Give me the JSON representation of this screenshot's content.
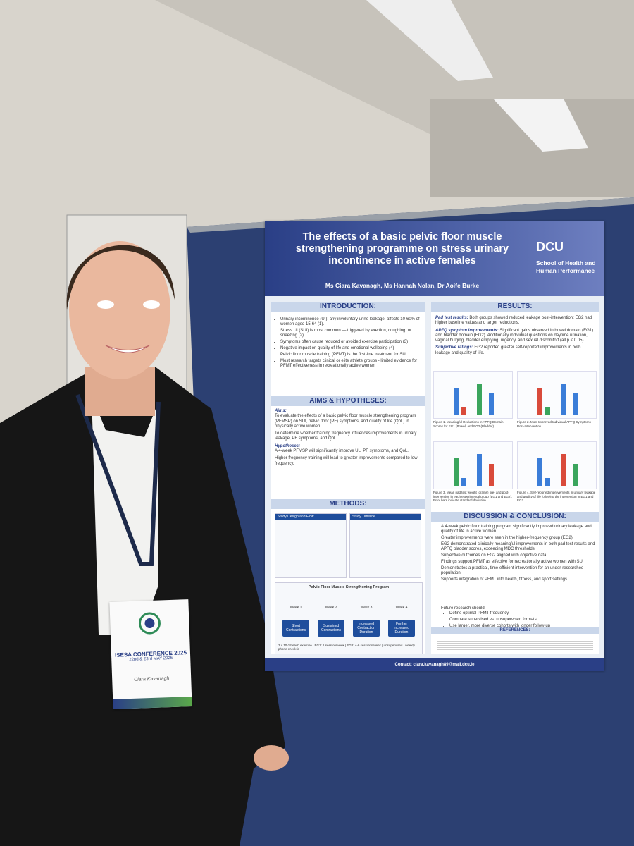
{
  "poster": {
    "title": "The effects of a basic pelvic floor muscle strengthening programme on stress urinary incontinence in active females",
    "authors": "Ms Ciara Kavanagh, Ms Hannah Nolan, Dr Aoife Burke",
    "logo": "DCU",
    "school": "School of Health and Human Performance",
    "introduction": {
      "heading": "INTRODUCTION:",
      "bullets": [
        "Urinary incontinence (UI): any involuntary urine leakage, affects 10-60% of women aged 15-64 (1).",
        "Stress UI (SUI) is most common — triggered by exertion, coughing, or sneezing (2).",
        "Symptoms often cause reduced or avoided exercise participation (3)",
        "Negative impact on quality of life and emotional wellbeing (4)",
        "Pelvic floor muscle training (PFMT) is the first-line treatment for SUI",
        "Most research targets clinical or elite athlete groups - limited evidence for PFMT effectiveness in recreationally active women"
      ]
    },
    "aims": {
      "heading": "AIMS & HYPOTHESES:",
      "aims_label": "Aims:",
      "aims": [
        "To evaluate the effects of a basic pelvic floor muscle strengthening program (PFMSP) on SUI, pelvic floor (PF) symptoms, and quality of life (QoL) in physically active women.",
        "To determine whether training frequency influences improvements in urinary leakage, PF symptoms, and QoL."
      ],
      "hypotheses_label": "Hypotheses:",
      "hypotheses": [
        "A 4-week PFMSP will significantly improve UL, PF symptoms, and QoL.",
        "Higher frequency training will lead to greater improvements compared to low frequency."
      ]
    },
    "methods": {
      "heading": "METHODS:",
      "design": "Study Design and Flow",
      "timeline": "Study Timeline",
      "program": "Pelvic Floor Muscle Strengthening Program",
      "weeks": [
        "Week 1",
        "Week 2",
        "Week 3",
        "Week 4"
      ],
      "steps": [
        "Short Contractions",
        "Sustained Contractions",
        "Increased Contraction Duration",
        "Further Increased Duration"
      ],
      "footer": "3 x 10-12 each exercise | EG1: 1 session/week | EG2: 4-6 sessions/week | unsupervised | weekly phone check in"
    },
    "results": {
      "heading": "RESULTS:",
      "paragraphs": [
        {
          "label": "Pad test results:",
          "text": "Both groups showed reduced leakage post-intervention; EG2 had higher baseline values and larger reductions."
        },
        {
          "label": "APFQ symptom improvements:",
          "text": "Significant gains observed in bowel domain (EG1) and bladder domain (EG2). Additionally individual questions on daytime urination, vaginal bulging, bladder emptying, urgency, and sexual discomfort (all p < 0.05)"
        },
        {
          "label": "Subjective ratings:",
          "text": "EG2 reported greater self-reported improvements in both leakage and quality of life."
        }
      ],
      "figures": [
        "Figure 1. Meaningful Reductions in APFQ Domain Scores for EG1 (Bowel) and EG2 (Bladder)",
        "Figure 2. Most Improved Individual APFQ Symptoms Post-Intervention",
        "Figure 3. Mean pad test weight (grams) pre- and post-intervention in each experimental group (EG1 and EG2). Error bars indicate standard deviation.",
        "Figure 4. Self-reported improvements in urinary leakage and quality of life following the intervention in EG1 and EG2."
      ]
    },
    "discussion": {
      "heading": "DISCUSSION & CONCLUSION:",
      "bullets": [
        "A 4-week pelvic floor training program significantly improved urinary leakage and quality of life in active women",
        "Greater improvements were seen in the higher-frequency group (EG2)",
        "EG2 demonstrated clinically meaningful improvements in both pad test results and APFQ bladder scores, exceeding MDC thresholds.",
        "Subjective outcomes on EG2 aligned with objective data",
        "Findings support PFMT as effective for recreationally active women with SUI",
        "Demonstrates a practical, time-efficient intervention for an under-researched population",
        "Supports integration of PFMT into health, fitness, and sport settings"
      ],
      "future_label": "Future research should:",
      "future": [
        "Define optimal PFMT frequency",
        "Compare supervised vs. unsupervised formats",
        "Use larger, more diverse cohorts with longer follow-up"
      ]
    },
    "references_heading": "REFERENCES:",
    "contact": "Contact: ciara.kavanagh89@mail.dcu.ie"
  },
  "badge": {
    "title": "ISESA CONFERENCE 2025",
    "dates": "22nd & 23rd MAY 2025",
    "name": "Ciara Kavanagh"
  }
}
